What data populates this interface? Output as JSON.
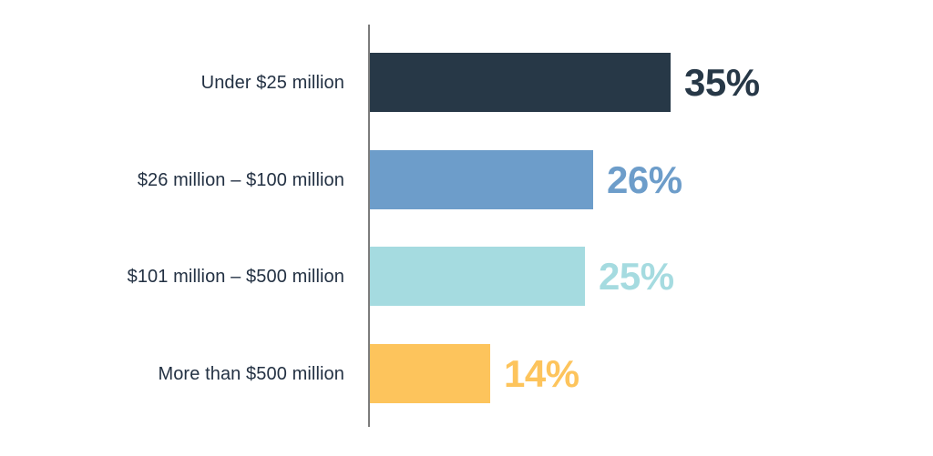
{
  "chart_data": {
    "type": "bar",
    "orientation": "horizontal",
    "title": "",
    "xlabel": "",
    "ylabel": "",
    "categories": [
      "Under $25 million",
      "$26 million – $100 million",
      "$101 million – $500 million",
      "More than $500 million"
    ],
    "values": [
      35,
      26,
      25,
      14
    ],
    "value_labels": [
      "35%",
      "26%",
      "25%",
      "14%"
    ],
    "bar_colors": [
      "#273847",
      "#6d9dca",
      "#a5dbe0",
      "#fdc45c"
    ],
    "label_color": "#233143",
    "axis_color": "#7c7c7c",
    "background": "#ffffff",
    "xlim": [
      0,
      35
    ],
    "grid": false,
    "legend": false
  }
}
